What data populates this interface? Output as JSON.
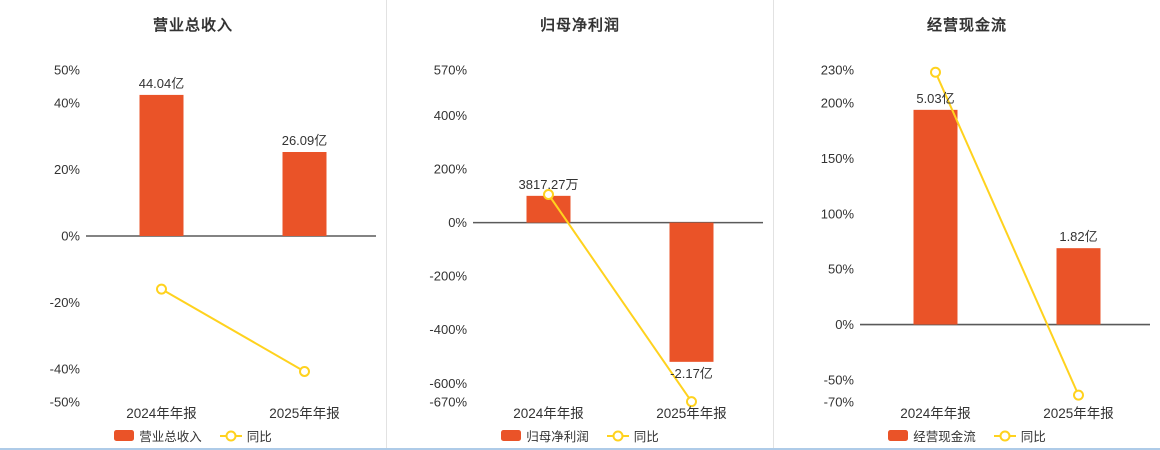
{
  "page": {
    "background": "#ffffff",
    "bottom_border_color": "#aecbe8",
    "divider_color": "#e2e2e2"
  },
  "colors": {
    "bar": "#ea5328",
    "line": "#ffd21e",
    "marker_fill": "#ffffff",
    "axis_line": "#5a5a5a",
    "text": "#333333"
  },
  "chart_data": [
    {
      "title": "营业总收入",
      "type": "bar+line",
      "categories": [
        "2024年年报",
        "2025年年报"
      ],
      "bar_series": {
        "name": "营业总收入",
        "labels": [
          "44.04亿",
          "26.09亿"
        ],
        "axis_values_pct": [
          42.5,
          25.3
        ]
      },
      "line_series": {
        "name": "同比",
        "values_pct": [
          -16,
          -40.8
        ]
      },
      "ylim": [
        -50,
        50
      ],
      "y_ticks": [
        50,
        40,
        20,
        0,
        -20,
        -40,
        -50
      ],
      "grid": false,
      "legend_position": "bottom"
    },
    {
      "title": "归母净利润",
      "type": "bar+line",
      "categories": [
        "2024年年报",
        "2025年年报"
      ],
      "bar_series": {
        "name": "归母净利润",
        "labels": [
          "3817.27万",
          "-2.17亿"
        ],
        "axis_values_pct": [
          100,
          -520
        ]
      },
      "line_series": {
        "name": "同比",
        "values_pct": [
          105,
          -668.5
        ]
      },
      "ylim": [
        -670,
        570
      ],
      "y_ticks": [
        570,
        400,
        200,
        0,
        -200,
        -400,
        -600,
        -670
      ],
      "grid": false,
      "legend_position": "bottom"
    },
    {
      "title": "经营现金流",
      "type": "bar+line",
      "categories": [
        "2024年年报",
        "2025年年报"
      ],
      "bar_series": {
        "name": "经营现金流",
        "labels": [
          "5.03亿",
          "1.82亿"
        ],
        "axis_values_pct": [
          194,
          69
        ]
      },
      "line_series": {
        "name": "同比",
        "values_pct": [
          228,
          -63.8
        ]
      },
      "ylim": [
        -70,
        230
      ],
      "y_ticks": [
        230,
        200,
        150,
        100,
        50,
        0,
        -50,
        -70
      ],
      "grid": false,
      "legend_position": "bottom"
    }
  ]
}
